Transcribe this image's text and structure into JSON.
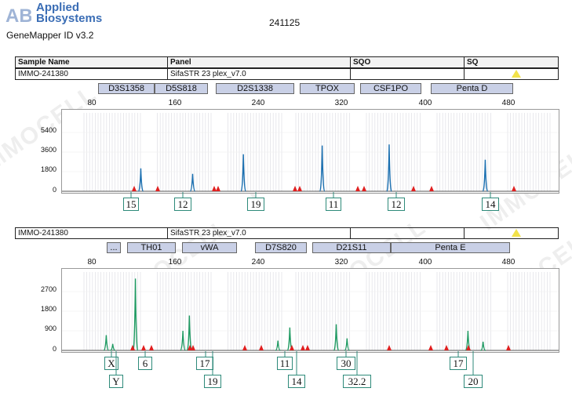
{
  "header": {
    "brand_line1": "Applied",
    "brand_line2": "Biosystems",
    "software": "GeneMapper ID v3.2",
    "run_id": "241125"
  },
  "table_header": {
    "sample_name": "Sample Name",
    "panel": "Panel",
    "sqo": "SQO",
    "sq": "SQ"
  },
  "watermark": "IMMOCELL",
  "panels": [
    {
      "sample": "IMMO-241380",
      "panel": "SifaSTR 23 plex_v7.0",
      "dye_color": "#1a6fb0",
      "scale_labels": [
        "80",
        "160",
        "240",
        "320",
        "400",
        "480"
      ],
      "y_labels": [
        "5400",
        "3600",
        "1800",
        "0"
      ],
      "markers": [
        "D3S1358",
        "D5S818",
        "D2S1338",
        "TPOX",
        "CSF1PO",
        "Penta D"
      ],
      "alleles": [
        "15",
        "12",
        "19",
        "11",
        "12",
        "14"
      ],
      "chart_data": {
        "type": "line",
        "xlim": [
          60,
          520
        ],
        "ylim": [
          0,
          7200
        ],
        "peaks": [
          {
            "x": 133,
            "height": 2100
          },
          {
            "x": 181,
            "height": 1600
          },
          {
            "x": 228,
            "height": 3400
          },
          {
            "x": 301,
            "height": 4200
          },
          {
            "x": 363,
            "height": 4300
          },
          {
            "x": 452,
            "height": 2900
          }
        ]
      }
    },
    {
      "sample": "IMMO-241380",
      "panel": "SifaSTR 23 plex_v7.0",
      "dye_color": "#1f9a62",
      "scale_labels": [
        "80",
        "160",
        "240",
        "320",
        "400",
        "480"
      ],
      "y_labels": [
        "2700",
        "1800",
        "900",
        "0"
      ],
      "markers": [
        "...",
        "TH01",
        "vWA",
        "D7S820",
        "D21S11",
        "Penta E"
      ],
      "alleles_top": [
        "X",
        "6",
        "17",
        "11",
        "30",
        "17"
      ],
      "alleles_bottom": [
        "Y",
        "19",
        "14",
        "32.2",
        "20"
      ],
      "chart_data": {
        "type": "line",
        "xlim": [
          60,
          520
        ],
        "ylim": [
          0,
          3600
        ],
        "peaks": [
          {
            "x": 101,
            "height": 700
          },
          {
            "x": 107,
            "height": 300
          },
          {
            "x": 128,
            "height": 3300
          },
          {
            "x": 172,
            "height": 900
          },
          {
            "x": 178,
            "height": 1600
          },
          {
            "x": 260,
            "height": 450
          },
          {
            "x": 271,
            "height": 1050
          },
          {
            "x": 314,
            "height": 1200
          },
          {
            "x": 324,
            "height": 550
          },
          {
            "x": 436,
            "height": 900
          },
          {
            "x": 450,
            "height": 400
          }
        ]
      }
    }
  ]
}
